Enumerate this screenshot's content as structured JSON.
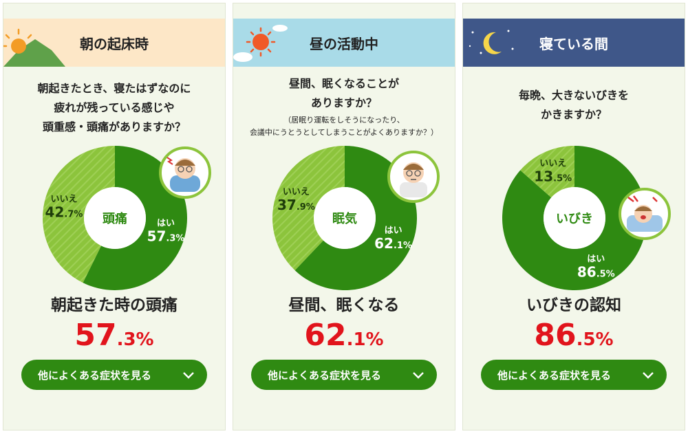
{
  "cards": [
    {
      "header": "朝の起床時",
      "question_lines": [
        "朝起きたとき、寝たはずなのに",
        "疲れが残っている感じや",
        "頭重感・頭痛がありますか？"
      ],
      "note_lines": [],
      "center_label": "頭痛",
      "result_label": "朝起きた時の頭痛",
      "result_big": "57",
      "result_small": ".3%",
      "button_label": "他によくある症状を見る"
    },
    {
      "header": "昼の活動中",
      "question_lines": [
        "昼間、眠くなることが",
        "ありますか？"
      ],
      "note_lines": [
        "（居眠り運転をしそうになったり、",
        "会議中にうとうとしてしまうことがよくありますか？）"
      ],
      "center_label": "眠気",
      "result_label": "昼間、眠くなる",
      "result_big": "62",
      "result_small": ".1%",
      "button_label": "他によくある症状を見る"
    },
    {
      "header": "寝ている間",
      "question_lines": [
        "毎晩、大きないびきを",
        "かきますか？"
      ],
      "note_lines": [],
      "center_label": "いびき",
      "result_label": "いびきの認知",
      "result_big": "86",
      "result_small": ".5%",
      "button_label": "他によくある症状を見る"
    }
  ],
  "chart_data": [
    {
      "type": "pie",
      "categories": [
        "はい",
        "いいえ"
      ],
      "values": [
        57.3,
        42.7
      ],
      "title": "頭痛"
    },
    {
      "type": "pie",
      "categories": [
        "はい",
        "いいえ"
      ],
      "values": [
        62.1,
        37.9
      ],
      "title": "眠気"
    },
    {
      "type": "pie",
      "categories": [
        "はい",
        "いいえ"
      ],
      "values": [
        86.5,
        13.5
      ],
      "title": "いびき"
    }
  ],
  "slice_labels": {
    "yes": "はい",
    "no": "いいえ",
    "values": [
      {
        "yes_big": "57",
        "yes_small": ".3%",
        "no_big": "42",
        "no_small": ".7%"
      },
      {
        "yes_big": "62",
        "yes_small": ".1%",
        "no_big": "37",
        "no_small": ".9%"
      },
      {
        "yes_big": "86",
        "yes_small": ".5%",
        "no_big": "13",
        "no_small": ".5%"
      }
    ]
  },
  "colors": {
    "yes": "#2f8a12",
    "no": "#8cc43c",
    "header_morning": "#fde7c7",
    "header_day": "#a9dbe8",
    "header_night": "#3f5789",
    "accent_red": "#e1141c",
    "button": "#2f8a12"
  }
}
